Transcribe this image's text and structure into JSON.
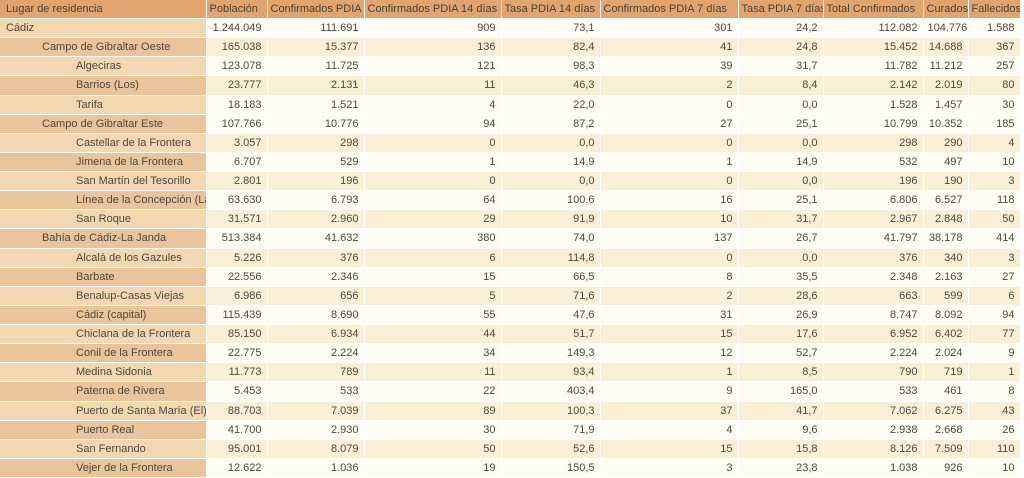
{
  "colors": {
    "header_bg": "#e1a46f",
    "name_cell_light": "#f3d7b1",
    "name_cell_dark": "#eac59b",
    "data_cell_white": "#fefdf1",
    "data_cell_cream": "#f9efd4",
    "text": "#4b4941"
  },
  "table": {
    "columns": [
      {
        "label": "Lugar de residencia",
        "align": "left"
      },
      {
        "label": "Población",
        "align": "right"
      },
      {
        "label": "Confirmados PDIA",
        "align": "right"
      },
      {
        "label": "Confirmados PDIA 14 días",
        "align": "right"
      },
      {
        "label": "Tasa PDIA 14 días",
        "align": "right"
      },
      {
        "label": "Confirmados PDIA 7 días",
        "align": "right"
      },
      {
        "label": "Tasa PDIA 7 días",
        "align": "right"
      },
      {
        "label": "Total Confirmados",
        "align": "right"
      },
      {
        "label": "Curados",
        "align": "right"
      },
      {
        "label": "Fallecidos",
        "align": "right"
      }
    ],
    "rows": [
      {
        "name": "Cádiz",
        "level": 0,
        "name_shade": "light",
        "data_shade": "white",
        "values": [
          "1.244.049",
          "111.691",
          "909",
          "73,1",
          "301",
          "24,2",
          "112.082",
          "104.776",
          "1.588"
        ]
      },
      {
        "name": "Campo de Gibraltar Oeste",
        "level": 1,
        "name_shade": "dark",
        "data_shade": "cream",
        "values": [
          "165.038",
          "15.377",
          "136",
          "82,4",
          "41",
          "24,8",
          "15.452",
          "14.688",
          "367"
        ]
      },
      {
        "name": "Algeciras",
        "level": 2,
        "name_shade": "light",
        "data_shade": "white",
        "values": [
          "123.078",
          "11.725",
          "121",
          "98,3",
          "39",
          "31,7",
          "11.782",
          "11.212",
          "257"
        ]
      },
      {
        "name": "Barrios (Los)",
        "level": 2,
        "name_shade": "dark",
        "data_shade": "cream",
        "values": [
          "23.777",
          "2.131",
          "11",
          "46,3",
          "2",
          "8,4",
          "2.142",
          "2.019",
          "80"
        ]
      },
      {
        "name": "Tarifa",
        "level": 2,
        "name_shade": "light",
        "data_shade": "white",
        "values": [
          "18.183",
          "1.521",
          "4",
          "22,0",
          "0",
          "0,0",
          "1.528",
          "1.457",
          "30"
        ]
      },
      {
        "name": "Campo de Gibraltar Este",
        "level": 1,
        "name_shade": "dark",
        "data_shade": "white",
        "values": [
          "107.766",
          "10.776",
          "94",
          "87,2",
          "27",
          "25,1",
          "10.799",
          "10.352",
          "185"
        ]
      },
      {
        "name": "Castellar de la Frontera",
        "level": 2,
        "name_shade": "light",
        "data_shade": "cream",
        "values": [
          "3.057",
          "298",
          "0",
          "0,0",
          "0",
          "0,0",
          "298",
          "290",
          "4"
        ]
      },
      {
        "name": "Jimena de la Frontera",
        "level": 2,
        "name_shade": "dark",
        "data_shade": "white",
        "values": [
          "6.707",
          "529",
          "1",
          "14,9",
          "1",
          "14,9",
          "532",
          "497",
          "10"
        ]
      },
      {
        "name": "San Martín del Tesorillo",
        "level": 2,
        "name_shade": "light",
        "data_shade": "cream",
        "values": [
          "2.801",
          "196",
          "0",
          "0,0",
          "0",
          "0,0",
          "196",
          "190",
          "3"
        ]
      },
      {
        "name": "Línea de la Concepción (La)",
        "level": 2,
        "name_shade": "dark",
        "data_shade": "white",
        "values": [
          "63.630",
          "6.793",
          "64",
          "100,6",
          "16",
          "25,1",
          "6.806",
          "6.527",
          "118"
        ]
      },
      {
        "name": "San Roque",
        "level": 2,
        "name_shade": "light",
        "data_shade": "cream",
        "values": [
          "31.571",
          "2.960",
          "29",
          "91,9",
          "10",
          "31,7",
          "2.967",
          "2.848",
          "50"
        ]
      },
      {
        "name": "Bahía de Cádiz-La Janda",
        "level": 1,
        "name_shade": "dark",
        "data_shade": "white",
        "values": [
          "513.384",
          "41.632",
          "380",
          "74,0",
          "137",
          "26,7",
          "41.797",
          "38.178",
          "414"
        ]
      },
      {
        "name": "Alcalá de los Gazules",
        "level": 2,
        "name_shade": "light",
        "data_shade": "cream",
        "values": [
          "5.226",
          "376",
          "6",
          "114,8",
          "0",
          "0,0",
          "376",
          "340",
          "3"
        ]
      },
      {
        "name": "Barbate",
        "level": 2,
        "name_shade": "dark",
        "data_shade": "white",
        "values": [
          "22.556",
          "2.346",
          "15",
          "66,5",
          "8",
          "35,5",
          "2.348",
          "2.163",
          "27"
        ]
      },
      {
        "name": "Benalup-Casas Viejas",
        "level": 2,
        "name_shade": "light",
        "data_shade": "cream",
        "values": [
          "6.986",
          "656",
          "5",
          "71,6",
          "2",
          "28,6",
          "663",
          "599",
          "6"
        ]
      },
      {
        "name": "Cádiz (capital)",
        "level": 2,
        "name_shade": "dark",
        "data_shade": "white",
        "values": [
          "115.439",
          "8.690",
          "55",
          "47,6",
          "31",
          "26,9",
          "8.747",
          "8.092",
          "94"
        ]
      },
      {
        "name": "Chiclana de la Frontera",
        "level": 2,
        "name_shade": "light",
        "data_shade": "cream",
        "values": [
          "85.150",
          "6.934",
          "44",
          "51,7",
          "15",
          "17,6",
          "6.952",
          "6.402",
          "77"
        ]
      },
      {
        "name": "Conil de la Frontera",
        "level": 2,
        "name_shade": "dark",
        "data_shade": "white",
        "values": [
          "22.775",
          "2.224",
          "34",
          "149,3",
          "12",
          "52,7",
          "2.224",
          "2.024",
          "9"
        ]
      },
      {
        "name": "Medina Sidonia",
        "level": 2,
        "name_shade": "light",
        "data_shade": "cream",
        "values": [
          "11.773",
          "789",
          "11",
          "93,4",
          "1",
          "8,5",
          "790",
          "719",
          "1"
        ]
      },
      {
        "name": "Paterna de Rivera",
        "level": 2,
        "name_shade": "dark",
        "data_shade": "white",
        "values": [
          "5.453",
          "533",
          "22",
          "403,4",
          "9",
          "165,0",
          "533",
          "461",
          "8"
        ]
      },
      {
        "name": "Puerto de Santa María (El)",
        "level": 2,
        "name_shade": "light",
        "data_shade": "cream",
        "values": [
          "88.703",
          "7.039",
          "89",
          "100,3",
          "37",
          "41,7",
          "7.062",
          "6.275",
          "43"
        ]
      },
      {
        "name": "Puerto Real",
        "level": 2,
        "name_shade": "dark",
        "data_shade": "white",
        "values": [
          "41.700",
          "2.930",
          "30",
          "71,9",
          "4",
          "9,6",
          "2.938",
          "2.668",
          "26"
        ]
      },
      {
        "name": "San Fernando",
        "level": 2,
        "name_shade": "light",
        "data_shade": "cream",
        "values": [
          "95.001",
          "8.079",
          "50",
          "52,6",
          "15",
          "15,8",
          "8.126",
          "7.509",
          "110"
        ]
      },
      {
        "name": "Vejer de la Frontera",
        "level": 2,
        "name_shade": "dark",
        "data_shade": "white",
        "values": [
          "12.622",
          "1.036",
          "19",
          "150,5",
          "3",
          "23,8",
          "1.038",
          "926",
          "10"
        ]
      }
    ]
  }
}
